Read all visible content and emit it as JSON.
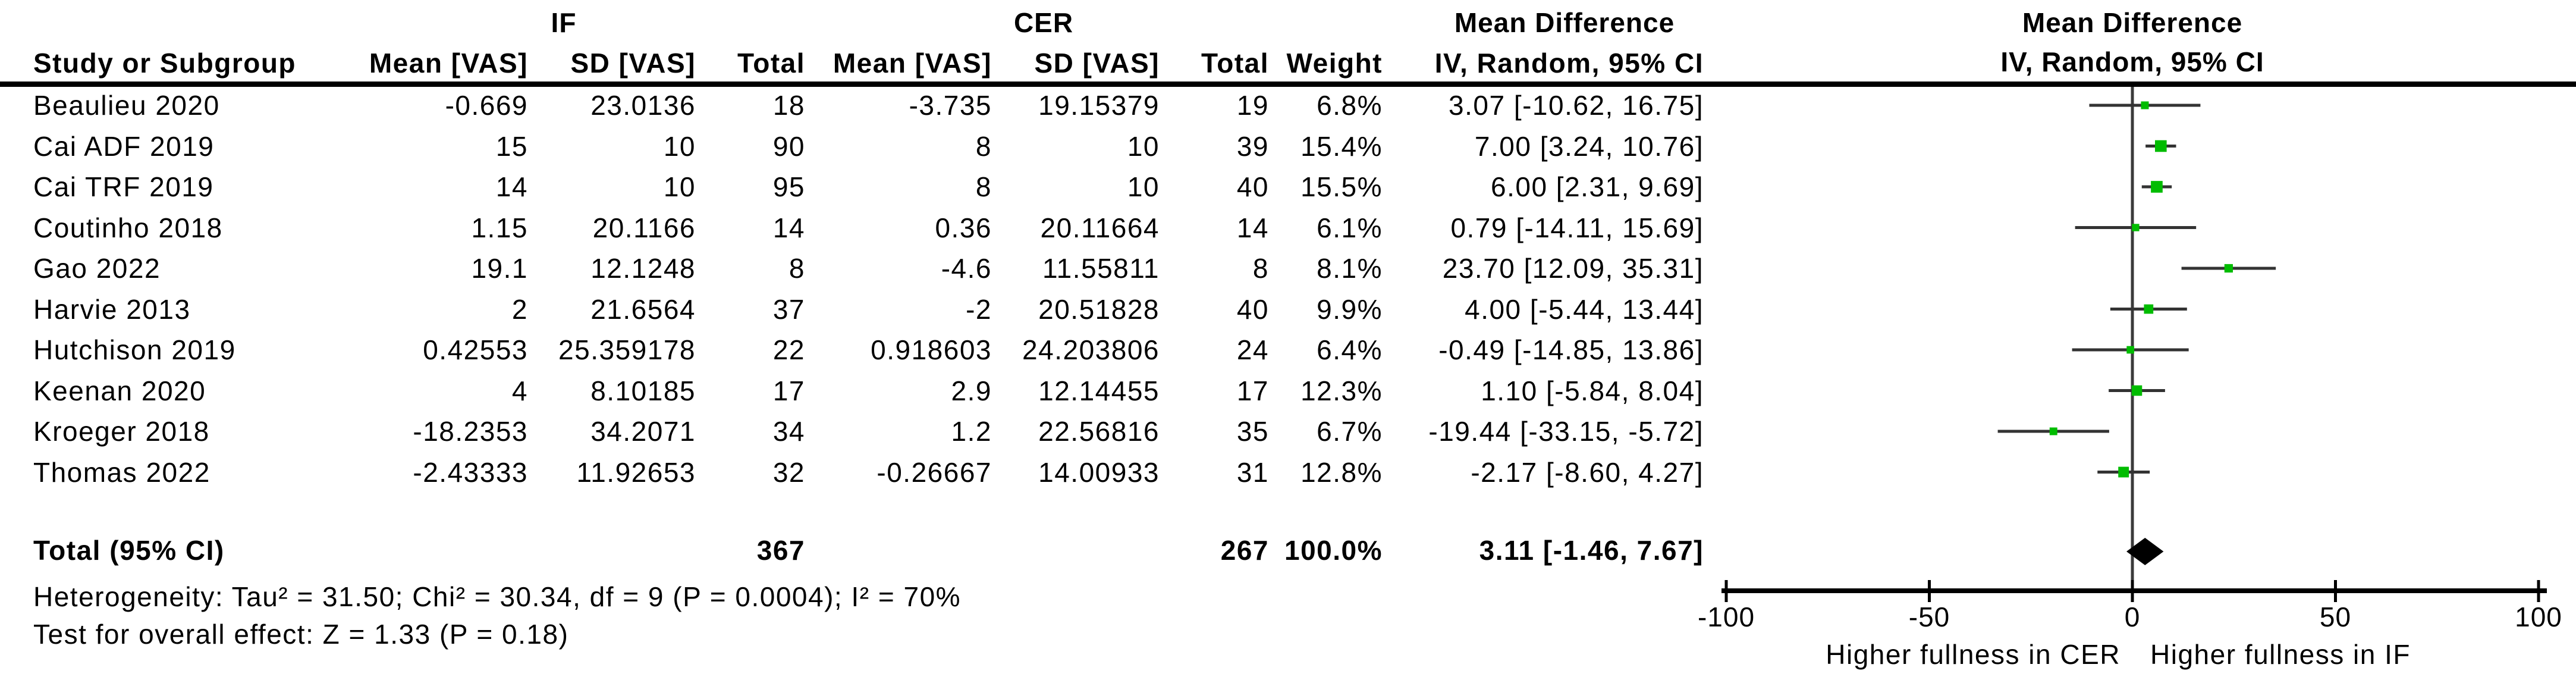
{
  "accent_colors": {
    "square_green": "#00BC00",
    "ci_line": "#333333",
    "axis_black": "#000000",
    "background": "#ffffff"
  },
  "table": {
    "group_headers": {
      "if": "IF",
      "cer": "CER",
      "md": "Mean Difference"
    },
    "col_headers": {
      "study": "Study or Subgroup",
      "mean": "Mean [VAS]",
      "sd": "SD [VAS]",
      "total": "Total",
      "weight": "Weight",
      "iv": "IV, Random, 95% CI"
    },
    "rows": [
      {
        "name": "Beaulieu 2020",
        "if_mean": "-0.669",
        "if_sd": "23.0136",
        "if_total": "18",
        "cer_mean": "-3.735",
        "cer_sd": "19.15379",
        "cer_total": "19",
        "weight": "6.8%",
        "md_label": "3.07 [-10.62, 16.75]"
      },
      {
        "name": "Cai ADF 2019",
        "if_mean": "15",
        "if_sd": "10",
        "if_total": "90",
        "cer_mean": "8",
        "cer_sd": "10",
        "cer_total": "39",
        "weight": "15.4%",
        "md_label": "7.00 [3.24, 10.76]"
      },
      {
        "name": "Cai TRF 2019",
        "if_mean": "14",
        "if_sd": "10",
        "if_total": "95",
        "cer_mean": "8",
        "cer_sd": "10",
        "cer_total": "40",
        "weight": "15.5%",
        "md_label": "6.00 [2.31, 9.69]"
      },
      {
        "name": "Coutinho 2018",
        "if_mean": "1.15",
        "if_sd": "20.1166",
        "if_total": "14",
        "cer_mean": "0.36",
        "cer_sd": "20.11664",
        "cer_total": "14",
        "weight": "6.1%",
        "md_label": "0.79 [-14.11, 15.69]"
      },
      {
        "name": "Gao 2022",
        "if_mean": "19.1",
        "if_sd": "12.1248",
        "if_total": "8",
        "cer_mean": "-4.6",
        "cer_sd": "11.55811",
        "cer_total": "8",
        "weight": "8.1%",
        "md_label": "23.70 [12.09, 35.31]"
      },
      {
        "name": "Harvie 2013",
        "if_mean": "2",
        "if_sd": "21.6564",
        "if_total": "37",
        "cer_mean": "-2",
        "cer_sd": "20.51828",
        "cer_total": "40",
        "weight": "9.9%",
        "md_label": "4.00 [-5.44, 13.44]"
      },
      {
        "name": "Hutchison 2019",
        "if_mean": "0.42553",
        "if_sd": "25.359178",
        "if_total": "22",
        "cer_mean": "0.918603",
        "cer_sd": "24.203806",
        "cer_total": "24",
        "weight": "6.4%",
        "md_label": "-0.49 [-14.85, 13.86]"
      },
      {
        "name": "Keenan 2020",
        "if_mean": "4",
        "if_sd": "8.10185",
        "if_total": "17",
        "cer_mean": "2.9",
        "cer_sd": "12.14455",
        "cer_total": "17",
        "weight": "12.3%",
        "md_label": "1.10 [-5.84, 8.04]"
      },
      {
        "name": "Kroeger 2018",
        "if_mean": "-18.2353",
        "if_sd": "34.2071",
        "if_total": "34",
        "cer_mean": "1.2",
        "cer_sd": "22.56816",
        "cer_total": "35",
        "weight": "6.7%",
        "md_label": "-19.44 [-33.15, -5.72]"
      },
      {
        "name": "Thomas 2022",
        "if_mean": "-2.43333",
        "if_sd": "11.92653",
        "if_total": "32",
        "cer_mean": "-0.26667",
        "cer_sd": "14.00933",
        "cer_total": "31",
        "weight": "12.8%",
        "md_label": "-2.17 [-8.60, 4.27]"
      }
    ],
    "total_row": {
      "label": "Total (95% CI)",
      "if_total": "367",
      "cer_total": "267",
      "weight": "100.0%",
      "md_label": "3.11 [-1.46, 7.67]"
    },
    "heterogeneity": "Heterogeneity: Tau² = 31.50; Chi² = 30.34, df = 9 (P = 0.0004); I² = 70%",
    "overall_effect": "Test for overall effect: Z = 1.33 (P = 0.18)"
  },
  "plot": {
    "header_line1": "Mean Difference",
    "header_line2": "IV, Random, 95% CI",
    "footer_left": "Higher fullness in CER",
    "footer_right": "Higher fullness in IF"
  },
  "chart_data": {
    "type": "forest",
    "title": "Mean Difference",
    "method": "IV, Random, 95% CI",
    "effect_measure": "Mean Difference [VAS]",
    "xlim": [
      -100,
      100
    ],
    "xticks": [
      -100,
      -50,
      0,
      50,
      100
    ],
    "x_label_left": "Higher fullness in CER",
    "x_label_right": "Higher fullness in IF",
    "grid": false,
    "studies": [
      {
        "name": "Beaulieu 2020",
        "if": {
          "mean": -0.669,
          "sd": 23.0136,
          "n": 18
        },
        "cer": {
          "mean": -3.735,
          "sd": 19.15379,
          "n": 19
        },
        "weight_pct": 6.8,
        "md": 3.07,
        "ci_low": -10.62,
        "ci_high": 16.75
      },
      {
        "name": "Cai ADF 2019",
        "if": {
          "mean": 15,
          "sd": 10,
          "n": 90
        },
        "cer": {
          "mean": 8,
          "sd": 10,
          "n": 39
        },
        "weight_pct": 15.4,
        "md": 7.0,
        "ci_low": 3.24,
        "ci_high": 10.76
      },
      {
        "name": "Cai TRF 2019",
        "if": {
          "mean": 14,
          "sd": 10,
          "n": 95
        },
        "cer": {
          "mean": 8,
          "sd": 10,
          "n": 40
        },
        "weight_pct": 15.5,
        "md": 6.0,
        "ci_low": 2.31,
        "ci_high": 9.69
      },
      {
        "name": "Coutinho 2018",
        "if": {
          "mean": 1.15,
          "sd": 20.1166,
          "n": 14
        },
        "cer": {
          "mean": 0.36,
          "sd": 20.11664,
          "n": 14
        },
        "weight_pct": 6.1,
        "md": 0.79,
        "ci_low": -14.11,
        "ci_high": 15.69
      },
      {
        "name": "Gao 2022",
        "if": {
          "mean": 19.1,
          "sd": 12.1248,
          "n": 8
        },
        "cer": {
          "mean": -4.6,
          "sd": 11.55811,
          "n": 8
        },
        "weight_pct": 8.1,
        "md": 23.7,
        "ci_low": 12.09,
        "ci_high": 35.31
      },
      {
        "name": "Harvie 2013",
        "if": {
          "mean": 2,
          "sd": 21.6564,
          "n": 37
        },
        "cer": {
          "mean": -2,
          "sd": 20.51828,
          "n": 40
        },
        "weight_pct": 9.9,
        "md": 4.0,
        "ci_low": -5.44,
        "ci_high": 13.44
      },
      {
        "name": "Hutchison 2019",
        "if": {
          "mean": 0.42553,
          "sd": 25.359178,
          "n": 22
        },
        "cer": {
          "mean": 0.918603,
          "sd": 24.203806,
          "n": 24
        },
        "weight_pct": 6.4,
        "md": -0.49,
        "ci_low": -14.85,
        "ci_high": 13.86
      },
      {
        "name": "Keenan 2020",
        "if": {
          "mean": 4,
          "sd": 8.10185,
          "n": 17
        },
        "cer": {
          "mean": 2.9,
          "sd": 12.14455,
          "n": 17
        },
        "weight_pct": 12.3,
        "md": 1.1,
        "ci_low": -5.84,
        "ci_high": 8.04
      },
      {
        "name": "Kroeger 2018",
        "if": {
          "mean": -18.2353,
          "sd": 34.2071,
          "n": 34
        },
        "cer": {
          "mean": 1.2,
          "sd": 22.56816,
          "n": 35
        },
        "weight_pct": 6.7,
        "md": -19.44,
        "ci_low": -33.15,
        "ci_high": -5.72
      },
      {
        "name": "Thomas 2022",
        "if": {
          "mean": -2.43333,
          "sd": 11.92653,
          "n": 32
        },
        "cer": {
          "mean": -0.26667,
          "sd": 14.00933,
          "n": 31
        },
        "weight_pct": 12.8,
        "md": -2.17,
        "ci_low": -8.6,
        "ci_high": 4.27
      }
    ],
    "total": {
      "label": "Total (95% CI)",
      "if_n": 367,
      "cer_n": 267,
      "weight_pct": 100.0,
      "md": 3.11,
      "ci_low": -1.46,
      "ci_high": 7.67
    },
    "heterogeneity": {
      "tau2": 31.5,
      "chi2": 30.34,
      "df": 9,
      "p": "0.0004",
      "i2": "70%"
    },
    "overall_effect": {
      "z": 1.33,
      "p": "0.18"
    }
  }
}
